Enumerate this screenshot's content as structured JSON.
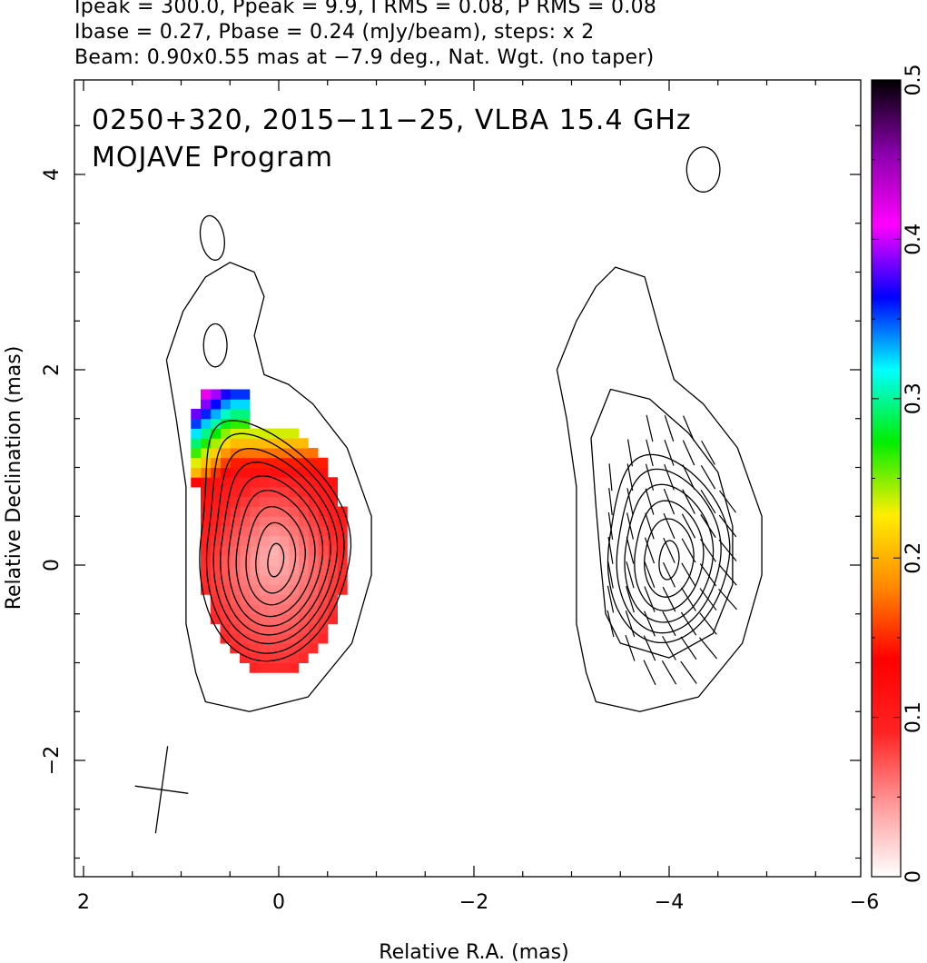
{
  "header": {
    "line1": "Ipeak = 300.0, Ppeak = 9.9, I RMS = 0.08, P RMS = 0.08",
    "line2": "Ibase = 0.27, Pbase = 0.24 (mJy/beam), steps: x 2",
    "line3": "Beam: 0.90x0.55 mas at −7.9 deg., Nat. Wgt. (no taper)"
  },
  "plot_text": {
    "title": "0250+320, 2015−11−25, VLBA 15.4 GHz",
    "subtitle": "MOJAVE Program"
  },
  "chart_data": {
    "type": "heatmap",
    "xlabel": "Relative R.A. (mas)",
    "ylabel": "Relative Declination (mas)",
    "xlim": [
      2.1,
      -6.1
    ],
    "ylim": [
      -3.2,
      5.0
    ],
    "x_ticks": [
      2,
      0,
      -2,
      -4,
      -6
    ],
    "x_tick_labels": [
      "2",
      "0",
      "−2",
      "−4",
      "−6"
    ],
    "y_ticks": [
      -2,
      0,
      2,
      4
    ],
    "y_tick_labels": [
      "−2",
      "0",
      "2",
      "4"
    ],
    "colorbar": {
      "range": [
        0,
        0.5
      ],
      "ticks": [
        0,
        0.1,
        0.2,
        0.3,
        0.4,
        0.5
      ],
      "tick_labels": [
        "0",
        "0.1",
        "0.2",
        "0.3",
        "0.4",
        "0.5"
      ],
      "colors": [
        "#ffffff",
        "#ff9999",
        "#ff2222",
        "#ff0000",
        "#ff8800",
        "#ffee00",
        "#00ee00",
        "#00ffff",
        "#0000ff",
        "#ff00ff",
        "#8800aa",
        "#000000"
      ]
    },
    "beam": {
      "major_mas": 0.9,
      "minor_mas": 0.55,
      "pa_deg": -7.9,
      "center": [
        1.2,
        -2.3
      ]
    },
    "stokes_I_panel": {
      "core": [
        0.0,
        0.0
      ],
      "contour_levels_mJy": [
        0.27,
        0.54,
        1.08,
        2.16,
        4.32,
        8.64,
        17.28,
        34.56,
        69.12,
        138.24
      ]
    },
    "polarization_panel": {
      "offset_x_mas": -4.0,
      "evpa_vectors_note": "vectors roughly aligned with jet direction"
    }
  }
}
